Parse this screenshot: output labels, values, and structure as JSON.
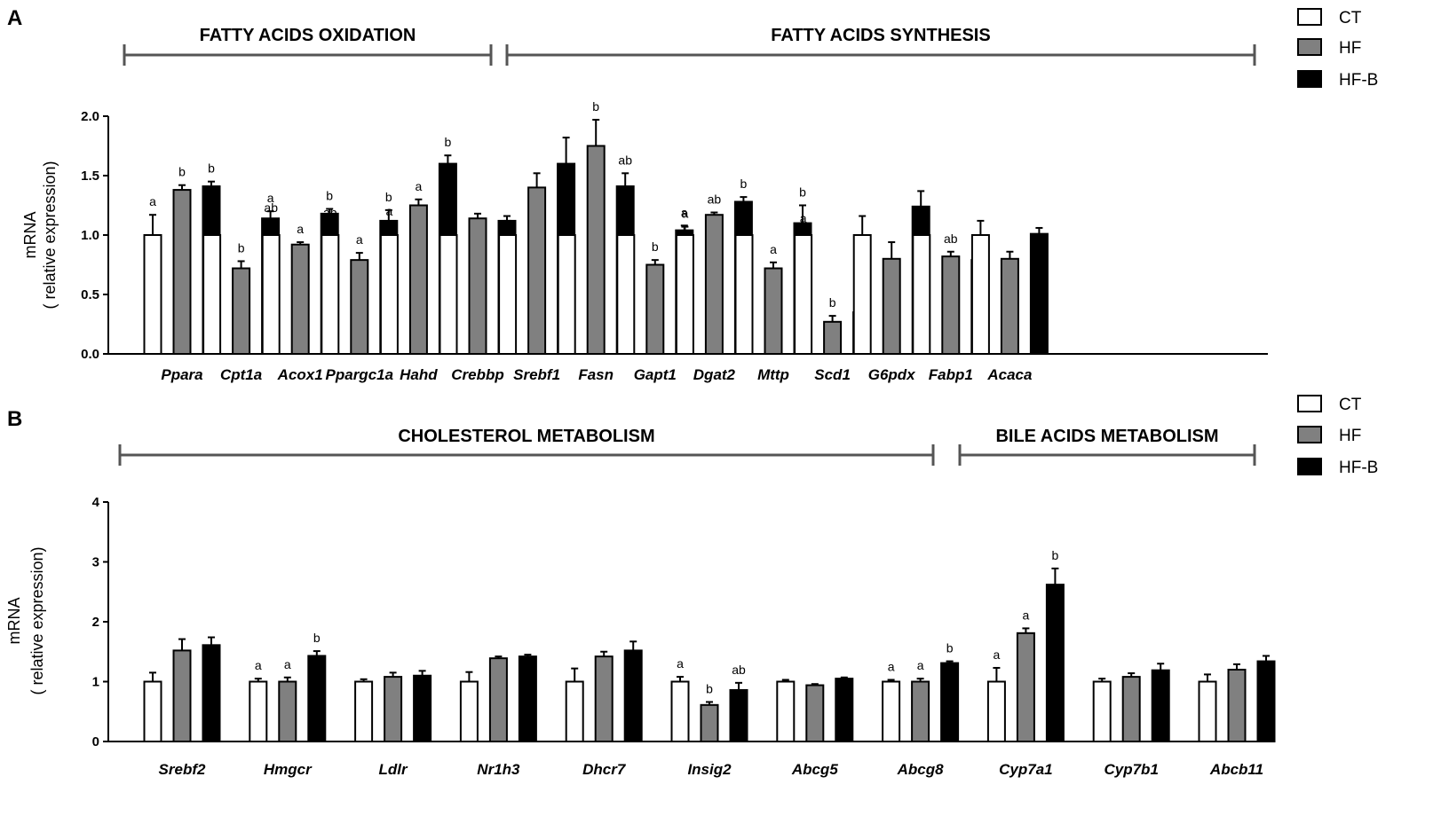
{
  "colors": {
    "CT": "#ffffff",
    "HF": "#808080",
    "HF-B": "#000000",
    "stroke": "#000000",
    "bracket": "#555555"
  },
  "chart_data": [
    {
      "panel": "A",
      "type": "bar",
      "ylabel": [
        "mRNA",
        "( relative expression)"
      ],
      "ylim": [
        0,
        2.0
      ],
      "yticks": [
        "0.0",
        "0.5",
        "1.0",
        "1.5",
        "2.0"
      ],
      "legend": [
        "CT",
        "HF",
        "HF-B"
      ],
      "groups": [
        {
          "label": "FATTY ACIDS OXIDATION",
          "from": 0,
          "to": 4
        },
        {
          "label": "FATTY ACIDS SYNTHESIS",
          "from": 5,
          "to": 14
        }
      ],
      "categories": [
        "Ppara",
        "Cpt1a",
        "Acox1",
        "Ppargc1a",
        "Hahd",
        "Crebbp",
        "Srebf1",
        "Fasn",
        "Gapt1",
        "Dgat2",
        "Mttp",
        "Scd1",
        "G6pdx",
        "Fabp1",
        "Acaca"
      ],
      "series": [
        {
          "name": "CT",
          "values": [
            1.0,
            1.0,
            1.0,
            1.0,
            1.0,
            1.0,
            1.0,
            1.0,
            1.0,
            1.0,
            1.0,
            1.0,
            1.0,
            1.0,
            1.0
          ],
          "errors": [
            0.17,
            0.08,
            0.12,
            0.08,
            0.09,
            0.06,
            0.12,
            0.1,
            0.04,
            0.07,
            0.08,
            0.03,
            0.16,
            0.06,
            0.12
          ],
          "labels": [
            "a",
            "a",
            "ab",
            "ab",
            "a",
            "",
            "",
            "a",
            "a",
            "a",
            "ab",
            "a",
            "",
            "a",
            ""
          ]
        },
        {
          "name": "HF",
          "values": [
            1.38,
            0.72,
            0.92,
            0.79,
            1.25,
            1.14,
            1.4,
            1.75,
            0.75,
            1.17,
            0.72,
            0.27,
            0.8,
            0.82,
            0.8
          ],
          "errors": [
            0.04,
            0.06,
            0.02,
            0.06,
            0.05,
            0.04,
            0.12,
            0.22,
            0.04,
            0.02,
            0.05,
            0.05,
            0.14,
            0.04,
            0.06
          ],
          "labels": [
            "b",
            "b",
            "a",
            "a",
            "a",
            "",
            "",
            "b",
            "b",
            "ab",
            "a",
            "b",
            "",
            "ab",
            ""
          ]
        },
        {
          "name": "HF-B",
          "values": [
            1.41,
            1.14,
            1.18,
            1.12,
            1.6,
            1.12,
            1.6,
            1.41,
            1.04,
            1.28,
            1.1,
            0.35,
            1.24,
            0.79,
            1.01
          ],
          "errors": [
            0.04,
            0.06,
            0.04,
            0.09,
            0.07,
            0.04,
            0.22,
            0.11,
            0.04,
            0.04,
            0.15,
            0.05,
            0.13,
            0.05,
            0.05
          ],
          "labels": [
            "b",
            "a",
            "b",
            "b",
            "b",
            "",
            "",
            "ab",
            "a",
            "b",
            "b",
            "b",
            "",
            "b",
            ""
          ]
        }
      ]
    },
    {
      "panel": "B",
      "type": "bar",
      "ylabel": [
        "mRNA",
        "( relative expression)"
      ],
      "ylim": [
        0,
        4
      ],
      "yticks": [
        "0",
        "1",
        "2",
        "3",
        "4"
      ],
      "legend": [
        "CT",
        "HF",
        "HF-B"
      ],
      "groups": [
        {
          "label": "CHOLESTEROL METABOLISM",
          "from": 0,
          "to": 7
        },
        {
          "label": "BILE ACIDS METABOLISM",
          "from": 8,
          "to": 10
        }
      ],
      "categories": [
        "Srebf2",
        "Hmgcr",
        "Ldlr",
        "Nr1h3",
        "Dhcr7",
        "Insig2",
        "Abcg5",
        "Abcg8",
        "Cyp7a1",
        "Cyp7b1",
        "Abcb11"
      ],
      "series": [
        {
          "name": "CT",
          "values": [
            1.0,
            1.0,
            1.0,
            1.0,
            1.0,
            1.0,
            1.0,
            1.0,
            1.0,
            1.0,
            1.0
          ],
          "errors": [
            0.15,
            0.05,
            0.04,
            0.16,
            0.22,
            0.08,
            0.03,
            0.03,
            0.23,
            0.05,
            0.12
          ],
          "labels": [
            "",
            "a",
            "",
            "",
            "",
            "a",
            "",
            "a",
            "a",
            "",
            ""
          ]
        },
        {
          "name": "HF",
          "values": [
            1.52,
            1.0,
            1.08,
            1.39,
            1.42,
            0.61,
            0.94,
            1.0,
            1.81,
            1.08,
            1.2
          ],
          "errors": [
            0.19,
            0.07,
            0.07,
            0.03,
            0.08,
            0.05,
            0.02,
            0.05,
            0.08,
            0.06,
            0.09
          ],
          "labels": [
            "",
            "a",
            "",
            "",
            "",
            "b",
            "",
            "a",
            "a",
            "",
            ""
          ]
        },
        {
          "name": "HF-B",
          "values": [
            1.61,
            1.43,
            1.1,
            1.42,
            1.52,
            0.86,
            1.05,
            1.31,
            2.62,
            1.19,
            1.34
          ],
          "errors": [
            0.13,
            0.08,
            0.08,
            0.03,
            0.15,
            0.12,
            0.02,
            0.03,
            0.27,
            0.11,
            0.09
          ],
          "labels": [
            "",
            "b",
            "",
            "",
            "",
            "ab",
            "",
            "b",
            "b",
            "",
            ""
          ]
        }
      ]
    }
  ]
}
